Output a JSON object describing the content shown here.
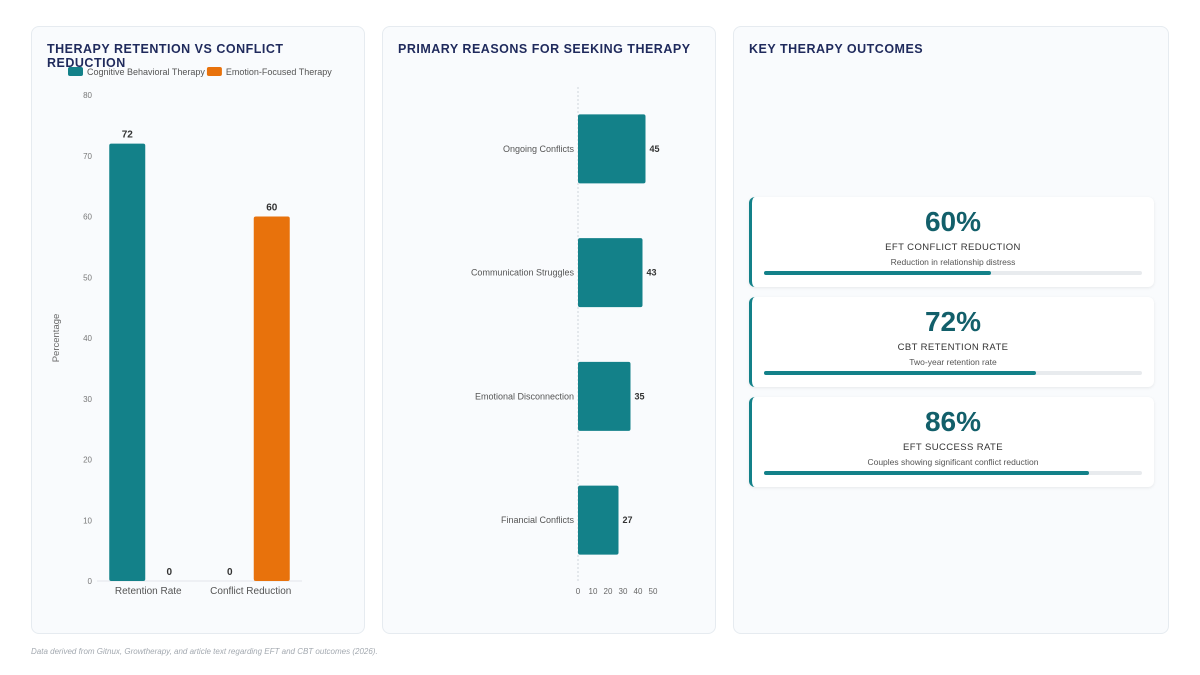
{
  "panels": {
    "chart1_title": "THERAPY RETENTION VS CONFLICT REDUCTION",
    "chart2_title": "PRIMARY REASONS FOR SEEKING THERAPY",
    "outcomes_title": "KEY THERAPY OUTCOMES"
  },
  "chart_data": [
    {
      "type": "bar",
      "title": "THERAPY RETENTION VS CONFLICT REDUCTION",
      "categories": [
        "Retention Rate",
        "Conflict Reduction"
      ],
      "series": [
        {
          "name": "Cognitive Behavioral Therapy",
          "values": [
            72,
            0
          ],
          "color": "#138189"
        },
        {
          "name": "Emotion-Focused Therapy",
          "values": [
            0,
            60
          ],
          "color": "#e8720c"
        }
      ],
      "ylabel": "Percentage",
      "ylim": [
        0,
        80
      ],
      "yticks": [
        0,
        10,
        20,
        30,
        40,
        50,
        60,
        70,
        80
      ],
      "legend": "top",
      "grid": false
    },
    {
      "type": "bar",
      "orientation": "horizontal",
      "title": "PRIMARY REASONS FOR SEEKING THERAPY",
      "categories": [
        "Ongoing Conflicts",
        "Communication Struggles",
        "Emotional Disconnection",
        "Financial Conflicts"
      ],
      "values": [
        45,
        43,
        35,
        27
      ],
      "color": "#138189",
      "xlim": [
        0,
        50
      ],
      "xticks": [
        0,
        10,
        20,
        30,
        40,
        50
      ],
      "grid": false
    }
  ],
  "outcomes": [
    {
      "value": "60%",
      "title": "EFT CONFLICT REDUCTION",
      "desc": "Reduction in relationship distress",
      "progress": 60
    },
    {
      "value": "72%",
      "title": "CBT RETENTION RATE",
      "desc": "Two-year retention rate",
      "progress": 72
    },
    {
      "value": "86%",
      "title": "EFT SUCCESS RATE",
      "desc": "Couples showing significant conflict reduction",
      "progress": 86
    }
  ],
  "footnote": "Data derived from Gitnux, Growtherapy, and article text regarding EFT and CBT outcomes (2026)."
}
